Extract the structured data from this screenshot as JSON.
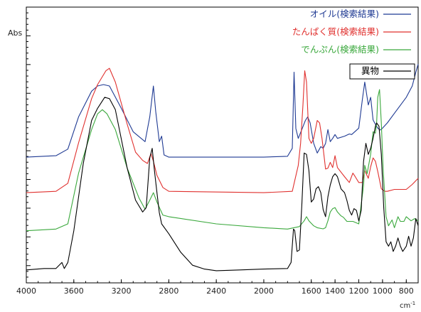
{
  "chart_data": {
    "type": "line",
    "ylabel": "Abs",
    "xlabel": "cm",
    "xlabel_sup": "-1",
    "xlim": [
      4000,
      700
    ],
    "x_reversed": true,
    "ylim": [
      0,
      100
    ],
    "x_ticks": [
      "4000",
      "3600",
      "3200",
      "2800",
      "2400",
      "2000",
      "1600",
      "1400",
      "1200",
      "1000",
      "800"
    ],
    "grid": false,
    "legend_position": "top-right",
    "series": [
      {
        "name": "オイル(検索結果)",
        "color": "#1f3a93",
        "points": [
          [
            4000,
            45.6
          ],
          [
            3750,
            46.1
          ],
          [
            3650,
            48.5
          ],
          [
            3560,
            60.2
          ],
          [
            3450,
            69.5
          ],
          [
            3400,
            71.4
          ],
          [
            3350,
            71.9
          ],
          [
            3300,
            71.4
          ],
          [
            3200,
            63.3
          ],
          [
            3100,
            54.8
          ],
          [
            3000,
            51.2
          ],
          [
            2960,
            60.2
          ],
          [
            2930,
            71.4
          ],
          [
            2910,
            62.1
          ],
          [
            2880,
            51.2
          ],
          [
            2860,
            53.2
          ],
          [
            2840,
            46.4
          ],
          [
            2800,
            45.6
          ],
          [
            2000,
            45.6
          ],
          [
            1800,
            45.9
          ],
          [
            1760,
            48.8
          ],
          [
            1745,
            76.4
          ],
          [
            1730,
            56.0
          ],
          [
            1710,
            52.4
          ],
          [
            1680,
            55.6
          ],
          [
            1650,
            58.9
          ],
          [
            1630,
            60.2
          ],
          [
            1610,
            58.0
          ],
          [
            1580,
            50.6
          ],
          [
            1550,
            47.1
          ],
          [
            1520,
            49.4
          ],
          [
            1500,
            48.8
          ],
          [
            1480,
            50.6
          ],
          [
            1460,
            55.6
          ],
          [
            1440,
            51.2
          ],
          [
            1420,
            52.4
          ],
          [
            1400,
            53.8
          ],
          [
            1380,
            52.4
          ],
          [
            1320,
            53.2
          ],
          [
            1280,
            54.0
          ],
          [
            1260,
            53.8
          ],
          [
            1200,
            56.1
          ],
          [
            1170,
            66.4
          ],
          [
            1150,
            72.8
          ],
          [
            1120,
            64.5
          ],
          [
            1100,
            67.3
          ],
          [
            1080,
            59.1
          ],
          [
            1060,
            57.5
          ],
          [
            1040,
            56.1
          ],
          [
            1020,
            55.4
          ],
          [
            1000,
            56.1
          ],
          [
            960,
            58.0
          ],
          [
            900,
            61.5
          ],
          [
            800,
            67.3
          ],
          [
            750,
            71.4
          ],
          [
            720,
            76.4
          ],
          [
            700,
            79.3
          ]
        ]
      },
      {
        "name": "たんぱく質(検索結果)",
        "color": "#e0302e",
        "points": [
          [
            4000,
            32.7
          ],
          [
            3750,
            33.2
          ],
          [
            3650,
            36.1
          ],
          [
            3560,
            50.8
          ],
          [
            3450,
            66.8
          ],
          [
            3400,
            71.9
          ],
          [
            3330,
            76.9
          ],
          [
            3300,
            77.8
          ],
          [
            3250,
            72.8
          ],
          [
            3150,
            57.5
          ],
          [
            3080,
            47.4
          ],
          [
            3020,
            44.4
          ],
          [
            2980,
            43.3
          ],
          [
            2950,
            46.9
          ],
          [
            2930,
            44.1
          ],
          [
            2900,
            39.0
          ],
          [
            2850,
            34.6
          ],
          [
            2800,
            33.2
          ],
          [
            2000,
            32.7
          ],
          [
            1760,
            33.2
          ],
          [
            1740,
            37.0
          ],
          [
            1710,
            42.6
          ],
          [
            1690,
            50.6
          ],
          [
            1670,
            64.5
          ],
          [
            1655,
            76.9
          ],
          [
            1640,
            72.8
          ],
          [
            1620,
            52.4
          ],
          [
            1600,
            50.6
          ],
          [
            1580,
            52.4
          ],
          [
            1550,
            58.9
          ],
          [
            1530,
            58.0
          ],
          [
            1510,
            52.4
          ],
          [
            1480,
            41.3
          ],
          [
            1460,
            41.6
          ],
          [
            1440,
            43.7
          ],
          [
            1420,
            41.8
          ],
          [
            1400,
            46.1
          ],
          [
            1380,
            41.8
          ],
          [
            1320,
            38.5
          ],
          [
            1280,
            36.4
          ],
          [
            1250,
            39.8
          ],
          [
            1230,
            38.5
          ],
          [
            1200,
            36.4
          ],
          [
            1170,
            36.4
          ],
          [
            1150,
            40.7
          ],
          [
            1120,
            37.9
          ],
          [
            1100,
            42.1
          ],
          [
            1080,
            45.3
          ],
          [
            1060,
            44.1
          ],
          [
            1040,
            40.4
          ],
          [
            1010,
            34.1
          ],
          [
            980,
            33.2
          ],
          [
            960,
            33.2
          ],
          [
            900,
            33.9
          ],
          [
            800,
            33.9
          ],
          [
            750,
            35.7
          ],
          [
            700,
            37.9
          ]
        ]
      },
      {
        "name": "でんぷん(検索結果)",
        "color": "#3aa83c",
        "points": [
          [
            4000,
            18.9
          ],
          [
            3750,
            19.5
          ],
          [
            3650,
            21.4
          ],
          [
            3560,
            39.8
          ],
          [
            3450,
            55.6
          ],
          [
            3400,
            61.3
          ],
          [
            3360,
            62.8
          ],
          [
            3320,
            61.3
          ],
          [
            3250,
            55.6
          ],
          [
            3150,
            41.6
          ],
          [
            3050,
            30.7
          ],
          [
            3000,
            26.7
          ],
          [
            2960,
            30.0
          ],
          [
            2930,
            32.7
          ],
          [
            2900,
            29.3
          ],
          [
            2850,
            24.6
          ],
          [
            2800,
            24.0
          ],
          [
            2400,
            21.4
          ],
          [
            2000,
            20.0
          ],
          [
            1800,
            19.5
          ],
          [
            1700,
            20.4
          ],
          [
            1660,
            22.5
          ],
          [
            1640,
            24.0
          ],
          [
            1620,
            22.5
          ],
          [
            1580,
            20.7
          ],
          [
            1550,
            20.0
          ],
          [
            1500,
            19.6
          ],
          [
            1480,
            20.0
          ],
          [
            1460,
            22.5
          ],
          [
            1440,
            25.7
          ],
          [
            1420,
            26.9
          ],
          [
            1400,
            27.3
          ],
          [
            1380,
            25.7
          ],
          [
            1350,
            24.3
          ],
          [
            1330,
            23.8
          ],
          [
            1300,
            22.3
          ],
          [
            1250,
            22.3
          ],
          [
            1200,
            21.4
          ],
          [
            1160,
            35.2
          ],
          [
            1150,
            42.6
          ],
          [
            1130,
            39.6
          ],
          [
            1100,
            46.6
          ],
          [
            1080,
            54.8
          ],
          [
            1060,
            54.3
          ],
          [
            1050,
            58.0
          ],
          [
            1040,
            67.3
          ],
          [
            1025,
            70.1
          ],
          [
            1010,
            58.0
          ],
          [
            995,
            41.6
          ],
          [
            970,
            24.0
          ],
          [
            950,
            20.7
          ],
          [
            920,
            22.8
          ],
          [
            900,
            20.0
          ],
          [
            870,
            24.0
          ],
          [
            850,
            22.3
          ],
          [
            820,
            22.3
          ],
          [
            800,
            24.0
          ],
          [
            760,
            22.5
          ],
          [
            730,
            23.3
          ],
          [
            700,
            22.5
          ]
        ]
      },
      {
        "name": "異物",
        "color": "#000000",
        "points": [
          [
            4000,
            4.7
          ],
          [
            3850,
            5.2
          ],
          [
            3750,
            5.2
          ],
          [
            3700,
            7.4
          ],
          [
            3680,
            5.2
          ],
          [
            3650,
            7.4
          ],
          [
            3600,
            18.9
          ],
          [
            3520,
            43.3
          ],
          [
            3450,
            58.9
          ],
          [
            3400,
            63.3
          ],
          [
            3340,
            67.3
          ],
          [
            3300,
            66.8
          ],
          [
            3250,
            62.8
          ],
          [
            3150,
            41.6
          ],
          [
            3080,
            30.0
          ],
          [
            3020,
            25.7
          ],
          [
            2990,
            27.3
          ],
          [
            2960,
            45.3
          ],
          [
            2940,
            48.8
          ],
          [
            2920,
            40.4
          ],
          [
            2900,
            32.7
          ],
          [
            2880,
            25.5
          ],
          [
            2860,
            21.4
          ],
          [
            2800,
            17.8
          ],
          [
            2700,
            11.1
          ],
          [
            2600,
            6.4
          ],
          [
            2500,
            5.0
          ],
          [
            2400,
            4.4
          ],
          [
            2200,
            4.7
          ],
          [
            2000,
            5.0
          ],
          [
            1800,
            5.2
          ],
          [
            1770,
            7.4
          ],
          [
            1750,
            19.5
          ],
          [
            1740,
            19.0
          ],
          [
            1720,
            11.4
          ],
          [
            1700,
            11.9
          ],
          [
            1680,
            28.1
          ],
          [
            1660,
            47.1
          ],
          [
            1640,
            46.6
          ],
          [
            1620,
            40.7
          ],
          [
            1600,
            29.3
          ],
          [
            1580,
            30.4
          ],
          [
            1560,
            34.1
          ],
          [
            1540,
            34.9
          ],
          [
            1520,
            32.7
          ],
          [
            1500,
            26.6
          ],
          [
            1480,
            24.0
          ],
          [
            1460,
            31.2
          ],
          [
            1440,
            35.5
          ],
          [
            1420,
            38.5
          ],
          [
            1400,
            39.6
          ],
          [
            1380,
            38.5
          ],
          [
            1350,
            34.1
          ],
          [
            1320,
            32.7
          ],
          [
            1300,
            29.9
          ],
          [
            1280,
            26.3
          ],
          [
            1260,
            24.6
          ],
          [
            1240,
            26.9
          ],
          [
            1220,
            26.3
          ],
          [
            1200,
            22.5
          ],
          [
            1180,
            26.3
          ],
          [
            1160,
            44.0
          ],
          [
            1140,
            50.6
          ],
          [
            1120,
            46.6
          ],
          [
            1100,
            48.8
          ],
          [
            1080,
            52.4
          ],
          [
            1060,
            56.8
          ],
          [
            1050,
            58.0
          ],
          [
            1030,
            56.8
          ],
          [
            1010,
            46.6
          ],
          [
            990,
            27.3
          ],
          [
            970,
            14.9
          ],
          [
            950,
            13.3
          ],
          [
            930,
            14.9
          ],
          [
            910,
            11.4
          ],
          [
            890,
            13.3
          ],
          [
            870,
            16.3
          ],
          [
            850,
            13.3
          ],
          [
            830,
            11.4
          ],
          [
            800,
            13.3
          ],
          [
            780,
            16.9
          ],
          [
            760,
            13.3
          ],
          [
            740,
            16.3
          ],
          [
            720,
            23.3
          ],
          [
            700,
            20.7
          ]
        ]
      }
    ]
  }
}
